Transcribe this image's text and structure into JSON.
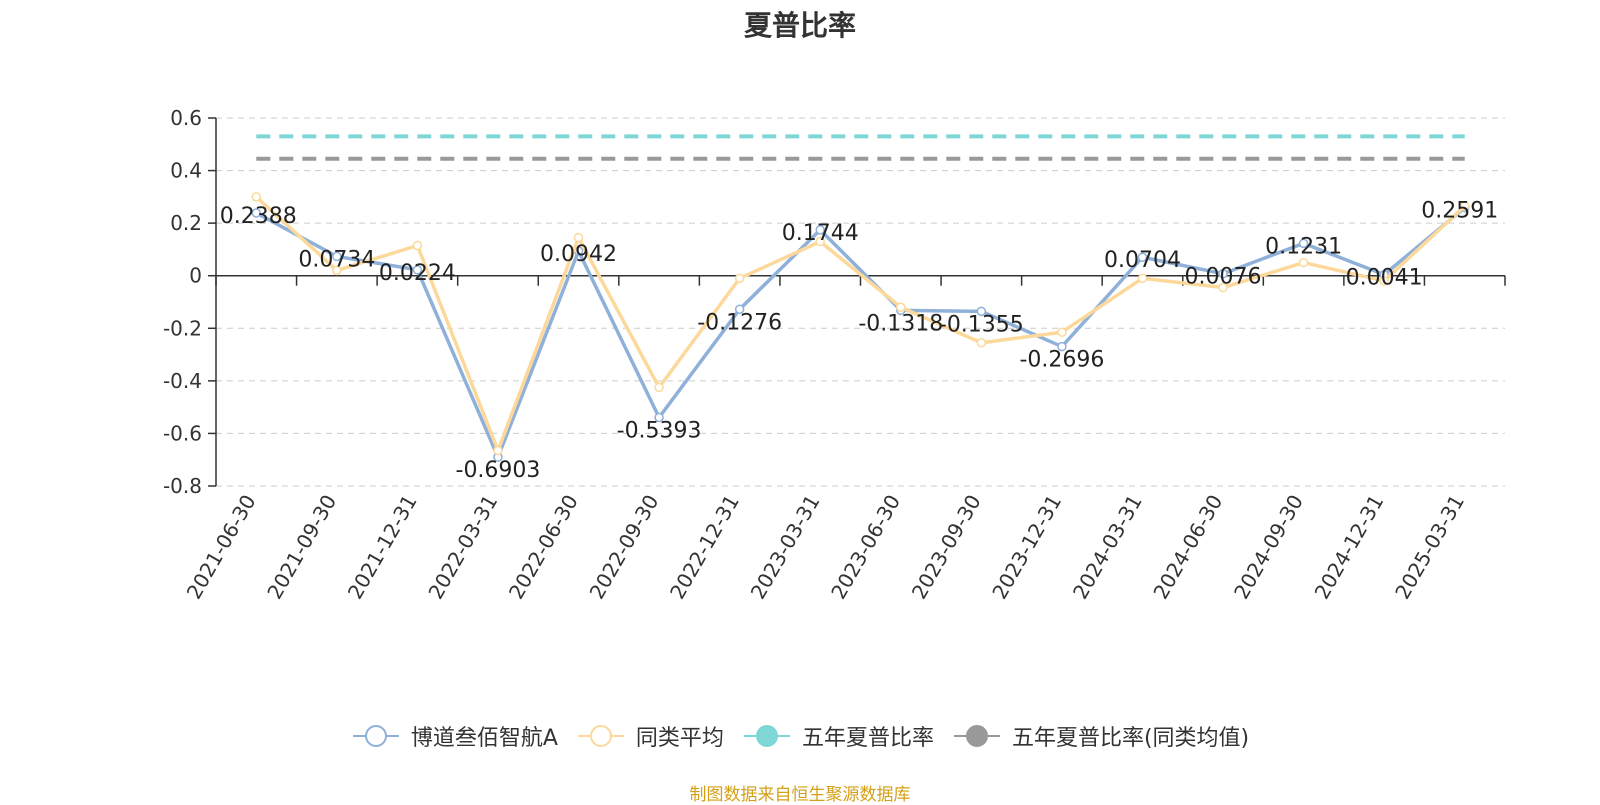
{
  "chart_data": {
    "type": "line",
    "title": "夏普比率",
    "categories": [
      "2021-06-30",
      "2021-09-30",
      "2021-12-31",
      "2022-03-31",
      "2022-06-30",
      "2022-09-30",
      "2022-12-31",
      "2023-03-31",
      "2023-06-30",
      "2023-09-30",
      "2023-12-31",
      "2024-03-31",
      "2024-06-30",
      "2024-09-30",
      "2024-12-31",
      "2025-03-31"
    ],
    "ylim": [
      -0.8,
      0.6
    ],
    "yticks": [
      0.6,
      0.4,
      0.2,
      0,
      -0.2,
      -0.4,
      -0.6,
      -0.8
    ],
    "ytick_labels": [
      "0.6",
      "0.4",
      "0.2",
      "0",
      "-0.2",
      "-0.4",
      "-0.6",
      "-0.8"
    ],
    "grid": true,
    "legend_position": "bottom",
    "series": [
      {
        "name": "博道叁佰智航A",
        "color": "#8fb0d9",
        "values": [
          0.2388,
          0.0734,
          0.0224,
          -0.6903,
          0.0942,
          -0.5393,
          -0.1276,
          0.1744,
          -0.1318,
          -0.1355,
          -0.2696,
          0.0704,
          0.0076,
          0.1231,
          0.0041,
          0.2591
        ],
        "labels": [
          "0.2388",
          "0.0734",
          "0.0224",
          "-0.6903",
          "0.0942",
          "-0.5393",
          "-0.1276",
          "0.1744",
          "-0.1318",
          "-0.1355",
          "-0.2696",
          "0.0704",
          "0.0076",
          "0.1231",
          "0.0041",
          "0.2591"
        ]
      },
      {
        "name": "同类平均",
        "color": "#fcd99a",
        "values": [
          0.3,
          0.02,
          0.115,
          -0.665,
          0.145,
          -0.425,
          -0.01,
          0.13,
          -0.12,
          -0.255,
          -0.215,
          -0.01,
          -0.045,
          0.05,
          -0.02,
          0.265
        ]
      },
      {
        "name": "五年夏普比率",
        "color": "#7fd6d6",
        "style": "dashed",
        "value": 0.53
      },
      {
        "name": "五年夏普比率(同类均值)",
        "color": "#999999",
        "style": "dashed",
        "value": 0.445
      }
    ]
  },
  "footer": "制图数据来自恒生聚源数据库",
  "legend_icons": [
    "hollow-circle-line-icon",
    "hollow-circle-line-icon",
    "filled-circle-line-icon",
    "filled-circle-line-icon"
  ]
}
